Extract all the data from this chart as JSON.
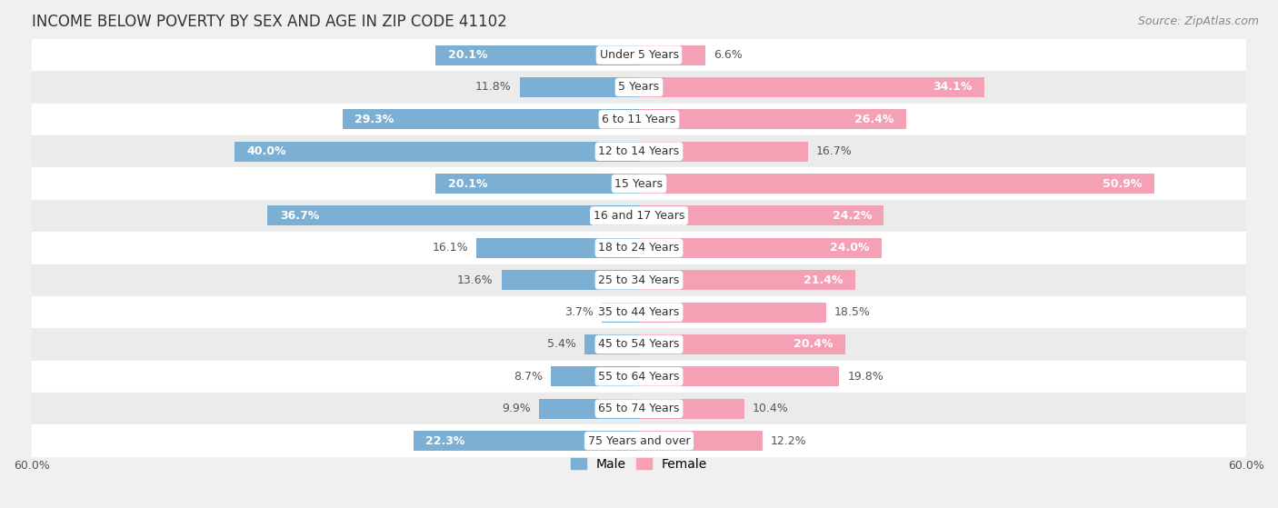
{
  "title": "INCOME BELOW POVERTY BY SEX AND AGE IN ZIP CODE 41102",
  "source": "Source: ZipAtlas.com",
  "categories": [
    "Under 5 Years",
    "5 Years",
    "6 to 11 Years",
    "12 to 14 Years",
    "15 Years",
    "16 and 17 Years",
    "18 to 24 Years",
    "25 to 34 Years",
    "35 to 44 Years",
    "45 to 54 Years",
    "55 to 64 Years",
    "65 to 74 Years",
    "75 Years and over"
  ],
  "male_values": [
    20.1,
    11.8,
    29.3,
    40.0,
    20.1,
    36.7,
    16.1,
    13.6,
    3.7,
    5.4,
    8.7,
    9.9,
    22.3
  ],
  "female_values": [
    6.6,
    34.1,
    26.4,
    16.7,
    50.9,
    24.2,
    24.0,
    21.4,
    18.5,
    20.4,
    19.8,
    10.4,
    12.2
  ],
  "male_color": "#7bafd4",
  "female_color": "#f4a0b5",
  "background_color": "#f0f0f0",
  "row_bg_color": "#ffffff",
  "row_alt_bg_color": "#ebebeb",
  "axis_limit": 60.0,
  "title_fontsize": 12,
  "label_fontsize": 9,
  "category_fontsize": 9,
  "source_fontsize": 9,
  "legend_fontsize": 10,
  "axis_label_fontsize": 9
}
